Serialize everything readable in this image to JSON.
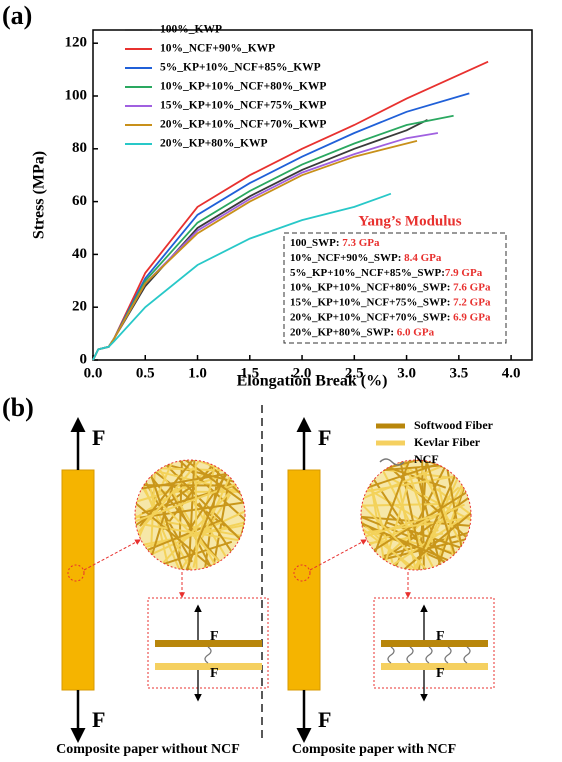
{
  "panel_a_label": "(a)",
  "panel_b_label": "(b)",
  "chart_data": {
    "type": "line",
    "x_label": "Elongation Break (%)",
    "y_label": "Stress (MPa)",
    "xlim": [
      0,
      4.2
    ],
    "ylim": [
      0,
      125
    ],
    "xticks": [
      {
        "value": 0,
        "label": "0.0"
      },
      {
        "value": 0.5,
        "label": "0.5"
      },
      {
        "value": 1,
        "label": "1.0"
      },
      {
        "value": 1.5,
        "label": "1.5"
      },
      {
        "value": 2,
        "label": "2.0"
      },
      {
        "value": 2.5,
        "label": "2.5"
      },
      {
        "value": 3,
        "label": "3.0"
      },
      {
        "value": 3.5,
        "label": "3.5"
      },
      {
        "value": 4,
        "label": "4.0"
      }
    ],
    "yticks": [
      0,
      20,
      40,
      60,
      80,
      100,
      120
    ],
    "series": [
      {
        "name": "100%_KWP",
        "color": "#3a3a3a",
        "x": [
          0,
          0.05,
          0.15,
          0.2,
          0.5,
          1,
          1.5,
          2,
          2.5,
          3,
          3.2
        ],
        "values": [
          0,
          4,
          5,
          8,
          28,
          50,
          62,
          72,
          80,
          87,
          91
        ]
      },
      {
        "name": "10%_NCF+90%_KWP",
        "color": "#e8312f",
        "x": [
          0,
          0.05,
          0.15,
          0.2,
          0.5,
          1,
          1.5,
          2,
          2.5,
          3,
          3.5,
          3.78
        ],
        "values": [
          0,
          4,
          5,
          8,
          33,
          58,
          70,
          80,
          89,
          99,
          108,
          113
        ]
      },
      {
        "name": "5%_KP+10%_NCF+85%_KWP",
        "color": "#2060d8",
        "x": [
          0,
          0.05,
          0.15,
          0.2,
          0.5,
          1,
          1.5,
          2,
          2.5,
          3,
          3.6
        ],
        "values": [
          0,
          4,
          5,
          8,
          31,
          55,
          67,
          77,
          86,
          94,
          101
        ]
      },
      {
        "name": "10%_KP+10%_NCF+80%_KWP",
        "color": "#2aa860",
        "x": [
          0,
          0.05,
          0.15,
          0.2,
          0.5,
          1,
          1.5,
          2,
          2.5,
          3,
          3.45
        ],
        "values": [
          0,
          4,
          5,
          8,
          30,
          52,
          64,
          74,
          82,
          89,
          92.5
        ]
      },
      {
        "name": "15%_KP+10%_NCF+75%_KWP",
        "color": "#a060e0",
        "x": [
          0,
          0.05,
          0.15,
          0.2,
          0.5,
          1,
          1.5,
          2,
          2.5,
          3,
          3.3
        ],
        "values": [
          0,
          4,
          5,
          8,
          29,
          49,
          61,
          71,
          78,
          84,
          86
        ]
      },
      {
        "name": "20%_KP+10%_NCF+70%_KWP",
        "color": "#c8901a",
        "x": [
          0,
          0.05,
          0.15,
          0.2,
          0.5,
          1,
          1.5,
          2,
          2.5,
          3,
          3.1
        ],
        "values": [
          0,
          4,
          5,
          8,
          29,
          48,
          60,
          70,
          77,
          82,
          83
        ]
      },
      {
        "name": "20%_KP+80%_KWP",
        "color": "#28c8c8",
        "x": [
          0,
          0.05,
          0.15,
          0.2,
          0.5,
          1,
          1.5,
          2,
          2.5,
          2.85
        ],
        "values": [
          0,
          4,
          5,
          7,
          20,
          36,
          46,
          53,
          58,
          63
        ]
      }
    ],
    "annotation": {
      "title": "Yang’s Modulus",
      "entries": [
        {
          "label": "100_SWP: ",
          "value_label": "7.3 GPa"
        },
        {
          "label": "10%_NCF+90%_SWP: ",
          "value_label": "8.4 GPa"
        },
        {
          "label": "5%_KP+10%_NCF+85%_SWP:",
          "value_label": "7.9 GPa"
        },
        {
          "label": "10%_KP+10%_NCF+80%_SWP: ",
          "value_label": "7.6 GPa"
        },
        {
          "label": "15%_KP+10%_NCF+75%_SWP: ",
          "value_label": "7.2 GPa"
        },
        {
          "label": "20%_KP+10%_NCF+70%_SWP: ",
          "value_label": "6.9 GPa"
        },
        {
          "label": "20%_KP+80%_SWP: ",
          "value_label": "6.0 GPa"
        }
      ]
    }
  },
  "diagram": {
    "force_label": "F",
    "legend": [
      "Softwood Fiber",
      "Kevlar Fiber",
      "NCF"
    ],
    "captions": [
      "Composite paper without NCF",
      "Composite paper with NCF"
    ]
  }
}
